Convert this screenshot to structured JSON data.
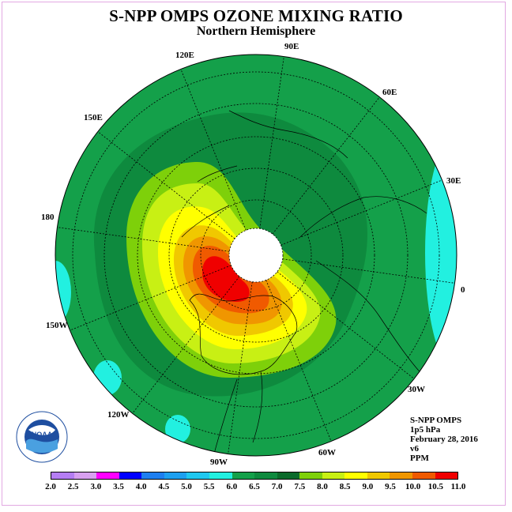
{
  "title": "S-NPP OMPS OZONE MIXING RATIO",
  "subtitle": "Northern Hemisphere",
  "longitude_labels": [
    "90E",
    "60E",
    "30E",
    "0",
    "30W",
    "60W",
    "90W",
    "120W",
    "150W",
    "180",
    "150E",
    "120E"
  ],
  "info": {
    "line1": "S-NPP OMPS",
    "line2": "1p5 hPa",
    "line3": "February 28, 2016",
    "line4": "v6",
    "line5": "PPM"
  },
  "scale": {
    "colors": [
      "#b57ef3",
      "#d8a0f0",
      "#ff00ff",
      "#0000ff",
      "#1e7ff0",
      "#1ea0f0",
      "#20c8f0",
      "#22f0e0",
      "#14a04a",
      "#0e8a3e",
      "#0a6a2a",
      "#7ed00a",
      "#c8f014",
      "#ffff00",
      "#f0c800",
      "#f09600",
      "#f05a00",
      "#f00000",
      "#8a5a3a"
    ],
    "tick_labels": [
      "2.0",
      "2.5",
      "3.0",
      "3.5",
      "4.0",
      "4.5",
      "5.0",
      "5.5",
      "6.0",
      "6.5",
      "7.0",
      "7.5",
      "8.0",
      "8.5",
      "9.0",
      "9.5",
      "10.0",
      "10.5",
      "11.0"
    ]
  },
  "logo_text": "NOAA"
}
